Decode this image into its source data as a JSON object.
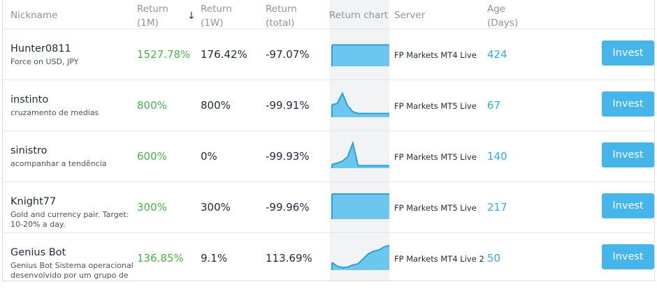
{
  "header": {
    "nickname": "Nickname",
    "return_1m_line1": "Return",
    "return_1m_line2": "(1M)",
    "return_1w_line1": "Return",
    "return_1w_line2": "(1W)",
    "return_total_line1": "Return",
    "return_total_line2": "(total)",
    "return_chart": "Return chart",
    "server": "Server",
    "age_line1": "Age",
    "age_line2": "(Days)",
    "sort_icon": "arrow-down-icon"
  },
  "colors": {
    "positive": "#4caf50",
    "age": "#3aa9e0",
    "button": "#46b6ea",
    "chart_fill": "#6cc6ee",
    "chart_line": "#2e9fd6"
  },
  "rows": [
    {
      "nickname": "Hunter0811",
      "description": "Force on USD, JPY",
      "return_1m": "1527.78%",
      "return_1w": "176.42%",
      "return_total": "-97.07%",
      "server": "FP Markets MT4 Live",
      "age": "424",
      "action": "Invest",
      "chart_series": [
        0.85,
        0.85,
        0.85,
        0.85,
        0.85,
        0.85,
        0.85,
        0.85,
        0.85,
        0.85,
        0.85,
        0.85
      ]
    },
    {
      "nickname": "instinto",
      "description": "cruzamento de medias",
      "return_1m": "800%",
      "return_1w": "800%",
      "return_total": "-99.91%",
      "server": "FP Markets MT5 Live",
      "age": "67",
      "action": "Invest",
      "chart_series": [
        0.5,
        0.55,
        0.95,
        0.45,
        0.22,
        0.15,
        0.15,
        0.15,
        0.15,
        0.15,
        0.15,
        0.15
      ]
    },
    {
      "nickname": "sinistro",
      "description": "acompanhar a tendência",
      "return_1m": "600%",
      "return_1w": "0%",
      "return_total": "-99.93%",
      "server": "FP Markets MT5 Live",
      "age": "140",
      "action": "Invest",
      "chart_series": [
        0.15,
        0.2,
        0.28,
        0.45,
        1.0,
        0.1,
        0.1,
        0.1,
        0.1,
        0.1,
        0.1,
        0.1
      ]
    },
    {
      "nickname": "Knight77",
      "description": "Gold and currency pair. Target: 10-20% a day.",
      "return_1m": "300%",
      "return_1w": "300%",
      "return_total": "-99.96%",
      "server": "FP Markets MT5 Live",
      "age": "217",
      "action": "Invest",
      "chart_series": [
        1.0,
        1.0,
        1.0,
        1.0,
        1.0,
        1.0,
        1.0,
        1.0,
        1.0,
        1.0,
        1.0,
        1.0
      ]
    },
    {
      "nickname": "Genius Bot",
      "description": "Genius Bot Sistema operacional desenvolvido por um grupo de especialistas em forex",
      "return_1m": "136.85%",
      "return_1w": "9.1%",
      "return_total": "113.69%",
      "server": "FP Markets MT4 Live 2",
      "age": "50",
      "action": "Invest",
      "chart_series": [
        0.3,
        0.15,
        0.1,
        0.12,
        0.2,
        0.25,
        0.45,
        0.65,
        0.75,
        0.8,
        0.92,
        0.98
      ]
    }
  ]
}
